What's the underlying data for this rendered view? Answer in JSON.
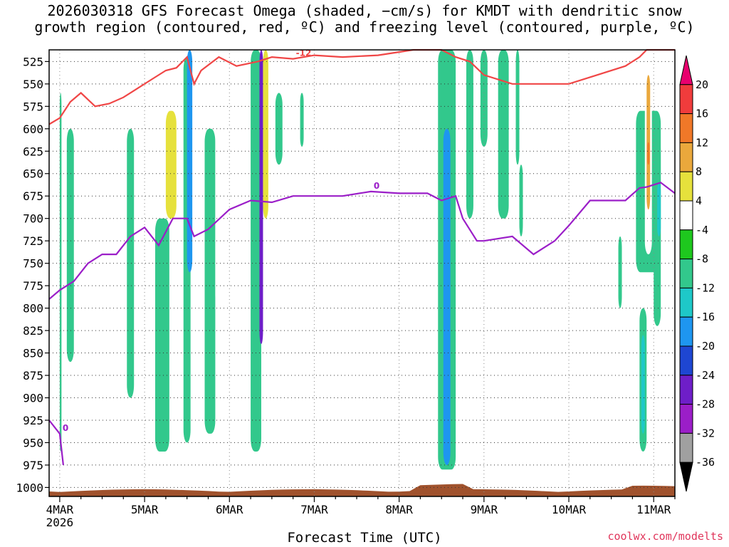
{
  "title_line1": "2026030318 GFS Forecast Omega (shaded, −cm/s) for KMDT with dendritic snow",
  "title_line2": "growth region (contoured, red, ºC) and freezing level (contoured, purple, ºC)",
  "credit": "coolwx.com/modelts",
  "chart_data": {
    "type": "heatmap",
    "title": "2026030318 GFS Forecast Omega (shaded, −cm/s) for KMDT with dendritic snow growth region (contoured, red, ºC) and freezing level (contoured, purple, ºC)",
    "xlabel": "Forecast Time (UTC)",
    "ylabel": "",
    "x_tick_labels": [
      "4MAR",
      "5MAR",
      "6MAR",
      "7MAR",
      "8MAR",
      "9MAR",
      "10MAR",
      "11MAR"
    ],
    "x_year_label": "2026",
    "x_range_hours_from_4mar00": [
      -3,
      174
    ],
    "y_tick_labels": [
      525,
      550,
      575,
      600,
      625,
      650,
      675,
      700,
      725,
      750,
      775,
      800,
      825,
      850,
      875,
      900,
      925,
      950,
      975,
      1000
    ],
    "y_range_hpa": [
      1010,
      512
    ],
    "grid": true,
    "colorbar": {
      "labels": [
        20,
        16,
        12,
        8,
        4,
        -4,
        -8,
        -12,
        -16,
        -20,
        -24,
        -28,
        -32,
        -36
      ],
      "colors": [
        "#e8006e",
        "#f03c3c",
        "#f07828",
        "#eaa83c",
        "#e6e13c",
        "#ffffff",
        "#1ec81e",
        "#32c88c",
        "#1ec8c8",
        "#1e96f0",
        "#1e46d2",
        "#6e1ec8",
        "#9b1ec8",
        "#a0a0a0",
        "#000000"
      ]
    },
    "omega_regions": [
      {
        "x0": 0.0,
        "x1": 0.5,
        "p_top": 560,
        "p_bot": 960,
        "level": "-8"
      },
      {
        "x0": 2.0,
        "x1": 4.0,
        "p_top": 600,
        "p_bot": 860,
        "level": "-8"
      },
      {
        "x0": 10.0,
        "x1": 12.0,
        "p_top": 620,
        "p_bot": 820,
        "level": "4"
      },
      {
        "x0": 19.0,
        "x1": 21.0,
        "p_top": 600,
        "p_bot": 900,
        "level": "-8"
      },
      {
        "x0": 27.0,
        "x1": 31.0,
        "p_top": 700,
        "p_bot": 960,
        "level": "-8"
      },
      {
        "x0": 30.0,
        "x1": 33.0,
        "p_top": 580,
        "p_bot": 700,
        "level": "8"
      },
      {
        "x0": 35.0,
        "x1": 37.0,
        "p_top": 520,
        "p_bot": 950,
        "level": "-8"
      },
      {
        "x0": 36.0,
        "x1": 37.5,
        "p_top": 512,
        "p_bot": 760,
        "level": "-16"
      },
      {
        "x0": 41.0,
        "x1": 44.0,
        "p_top": 600,
        "p_bot": 940,
        "level": "-8"
      },
      {
        "x0": 44.0,
        "x1": 46.0,
        "p_top": 560,
        "p_bot": 800,
        "level": "4"
      },
      {
        "x0": 54.0,
        "x1": 57.0,
        "p_top": 512,
        "p_bot": 960,
        "level": "-8"
      },
      {
        "x0": 56.5,
        "x1": 57.5,
        "p_top": 512,
        "p_bot": 840,
        "level": "-24"
      },
      {
        "x0": 57.5,
        "x1": 59.0,
        "p_top": 512,
        "p_bot": 700,
        "level": "8"
      },
      {
        "x0": 61.0,
        "x1": 63.0,
        "p_top": 560,
        "p_bot": 640,
        "level": "-8"
      },
      {
        "x0": 68.0,
        "x1": 69.0,
        "p_top": 560,
        "p_bot": 620,
        "level": "-8"
      },
      {
        "x0": 76.0,
        "x1": 77.0,
        "p_top": 800,
        "p_bot": 870,
        "level": "4"
      },
      {
        "x0": 98.0,
        "x1": 99.5,
        "p_top": 512,
        "p_bot": 560,
        "level": "4"
      },
      {
        "x0": 101.0,
        "x1": 102.5,
        "p_top": 512,
        "p_bot": 600,
        "level": "4"
      },
      {
        "x0": 107.0,
        "x1": 112.0,
        "p_top": 512,
        "p_bot": 980,
        "level": "-8"
      },
      {
        "x0": 108.5,
        "x1": 110.5,
        "p_top": 600,
        "p_bot": 975,
        "level": "-16"
      },
      {
        "x0": 115.0,
        "x1": 117.0,
        "p_top": 512,
        "p_bot": 700,
        "level": "-8"
      },
      {
        "x0": 117.0,
        "x1": 119.0,
        "p_top": 512,
        "p_bot": 560,
        "level": "4"
      },
      {
        "x0": 119.0,
        "x1": 121.0,
        "p_top": 512,
        "p_bot": 620,
        "level": "-8"
      },
      {
        "x0": 124.0,
        "x1": 127.0,
        "p_top": 512,
        "p_bot": 700,
        "level": "-8"
      },
      {
        "x0": 129.0,
        "x1": 130.0,
        "p_top": 512,
        "p_bot": 640,
        "level": "-8"
      },
      {
        "x0": 130.0,
        "x1": 131.0,
        "p_top": 640,
        "p_bot": 720,
        "level": "-8"
      },
      {
        "x0": 130.0,
        "x1": 133.0,
        "p_top": 740,
        "p_bot": 900,
        "level": "4"
      },
      {
        "x0": 137.0,
        "x1": 139.0,
        "p_top": 660,
        "p_bot": 760,
        "level": "4"
      },
      {
        "x0": 143.0,
        "x1": 144.0,
        "p_top": 700,
        "p_bot": 780,
        "level": "4"
      },
      {
        "x0": 154.0,
        "x1": 155.5,
        "p_top": 512,
        "p_bot": 560,
        "level": "4"
      },
      {
        "x0": 157.0,
        "x1": 160.0,
        "p_top": 512,
        "p_bot": 580,
        "level": "4"
      },
      {
        "x0": 158.0,
        "x1": 159.0,
        "p_top": 720,
        "p_bot": 800,
        "level": "-8"
      },
      {
        "x0": 163.0,
        "x1": 170.0,
        "p_top": 580,
        "p_bot": 760,
        "level": "-8"
      },
      {
        "x0": 165.5,
        "x1": 167.5,
        "p_top": 512,
        "p_bot": 740,
        "level": "4"
      },
      {
        "x0": 166.0,
        "x1": 167.0,
        "p_top": 540,
        "p_bot": 690,
        "level": "12"
      },
      {
        "x0": 166.2,
        "x1": 166.8,
        "p_top": 615,
        "p_bot": 640,
        "level": "16"
      },
      {
        "x0": 164.0,
        "x1": 166.0,
        "p_top": 800,
        "p_bot": 960,
        "level": "-8"
      },
      {
        "x0": 164.5,
        "x1": 165.5,
        "p_top": 830,
        "p_bot": 940,
        "level": "-12"
      },
      {
        "x0": 168.0,
        "x1": 170.0,
        "p_top": 610,
        "p_bot": 820,
        "level": "-8"
      },
      {
        "x0": 169.0,
        "x1": 170.0,
        "p_top": 660,
        "p_bot": 720,
        "level": "-12"
      }
    ],
    "series": [
      {
        "name": "-12",
        "label": "-12",
        "color": "#f04646",
        "x": [
          -3,
          0,
          3,
          6,
          10,
          14,
          18,
          22,
          26,
          30,
          33,
          36,
          38,
          40,
          45,
          50,
          56,
          60,
          66,
          72,
          80,
          90,
          100,
          104,
          108,
          112,
          116,
          120,
          128,
          136,
          144,
          152,
          160,
          164,
          166,
          170,
          174
        ],
        "y": [
          595,
          588,
          570,
          560,
          575,
          572,
          565,
          555,
          545,
          535,
          532,
          520,
          550,
          535,
          520,
          530,
          525,
          520,
          522,
          518,
          520,
          518,
          508,
          510,
          512,
          520,
          525,
          540,
          550,
          550,
          550,
          540,
          530,
          520,
          505,
          505,
          505
        ]
      },
      {
        "name": "0",
        "label": "0",
        "color": "#9b1ec8",
        "x": [
          -3,
          0,
          4,
          8,
          12,
          16,
          20,
          24,
          28,
          32,
          36,
          38,
          42,
          48,
          54,
          60,
          66,
          72,
          80,
          88,
          96,
          104,
          108,
          112,
          114,
          118,
          120,
          128,
          134,
          140,
          144,
          150,
          156,
          160,
          164,
          166,
          170,
          174
        ],
        "y": [
          790,
          780,
          770,
          750,
          740,
          740,
          720,
          710,
          730,
          700,
          700,
          720,
          712,
          690,
          680,
          682,
          675,
          675,
          675,
          670,
          672,
          672,
          680,
          675,
          700,
          725,
          725,
          720,
          740,
          725,
          708,
          680,
          680,
          680,
          666,
          665,
          660,
          672
        ]
      },
      {
        "name": "0",
        "label": "0",
        "color": "#9b1ec8",
        "x": [
          -3,
          0,
          1
        ],
        "y": [
          925,
          940,
          975
        ]
      }
    ],
    "ground_fill": {
      "color": "#a0522d",
      "label": ""
    }
  }
}
